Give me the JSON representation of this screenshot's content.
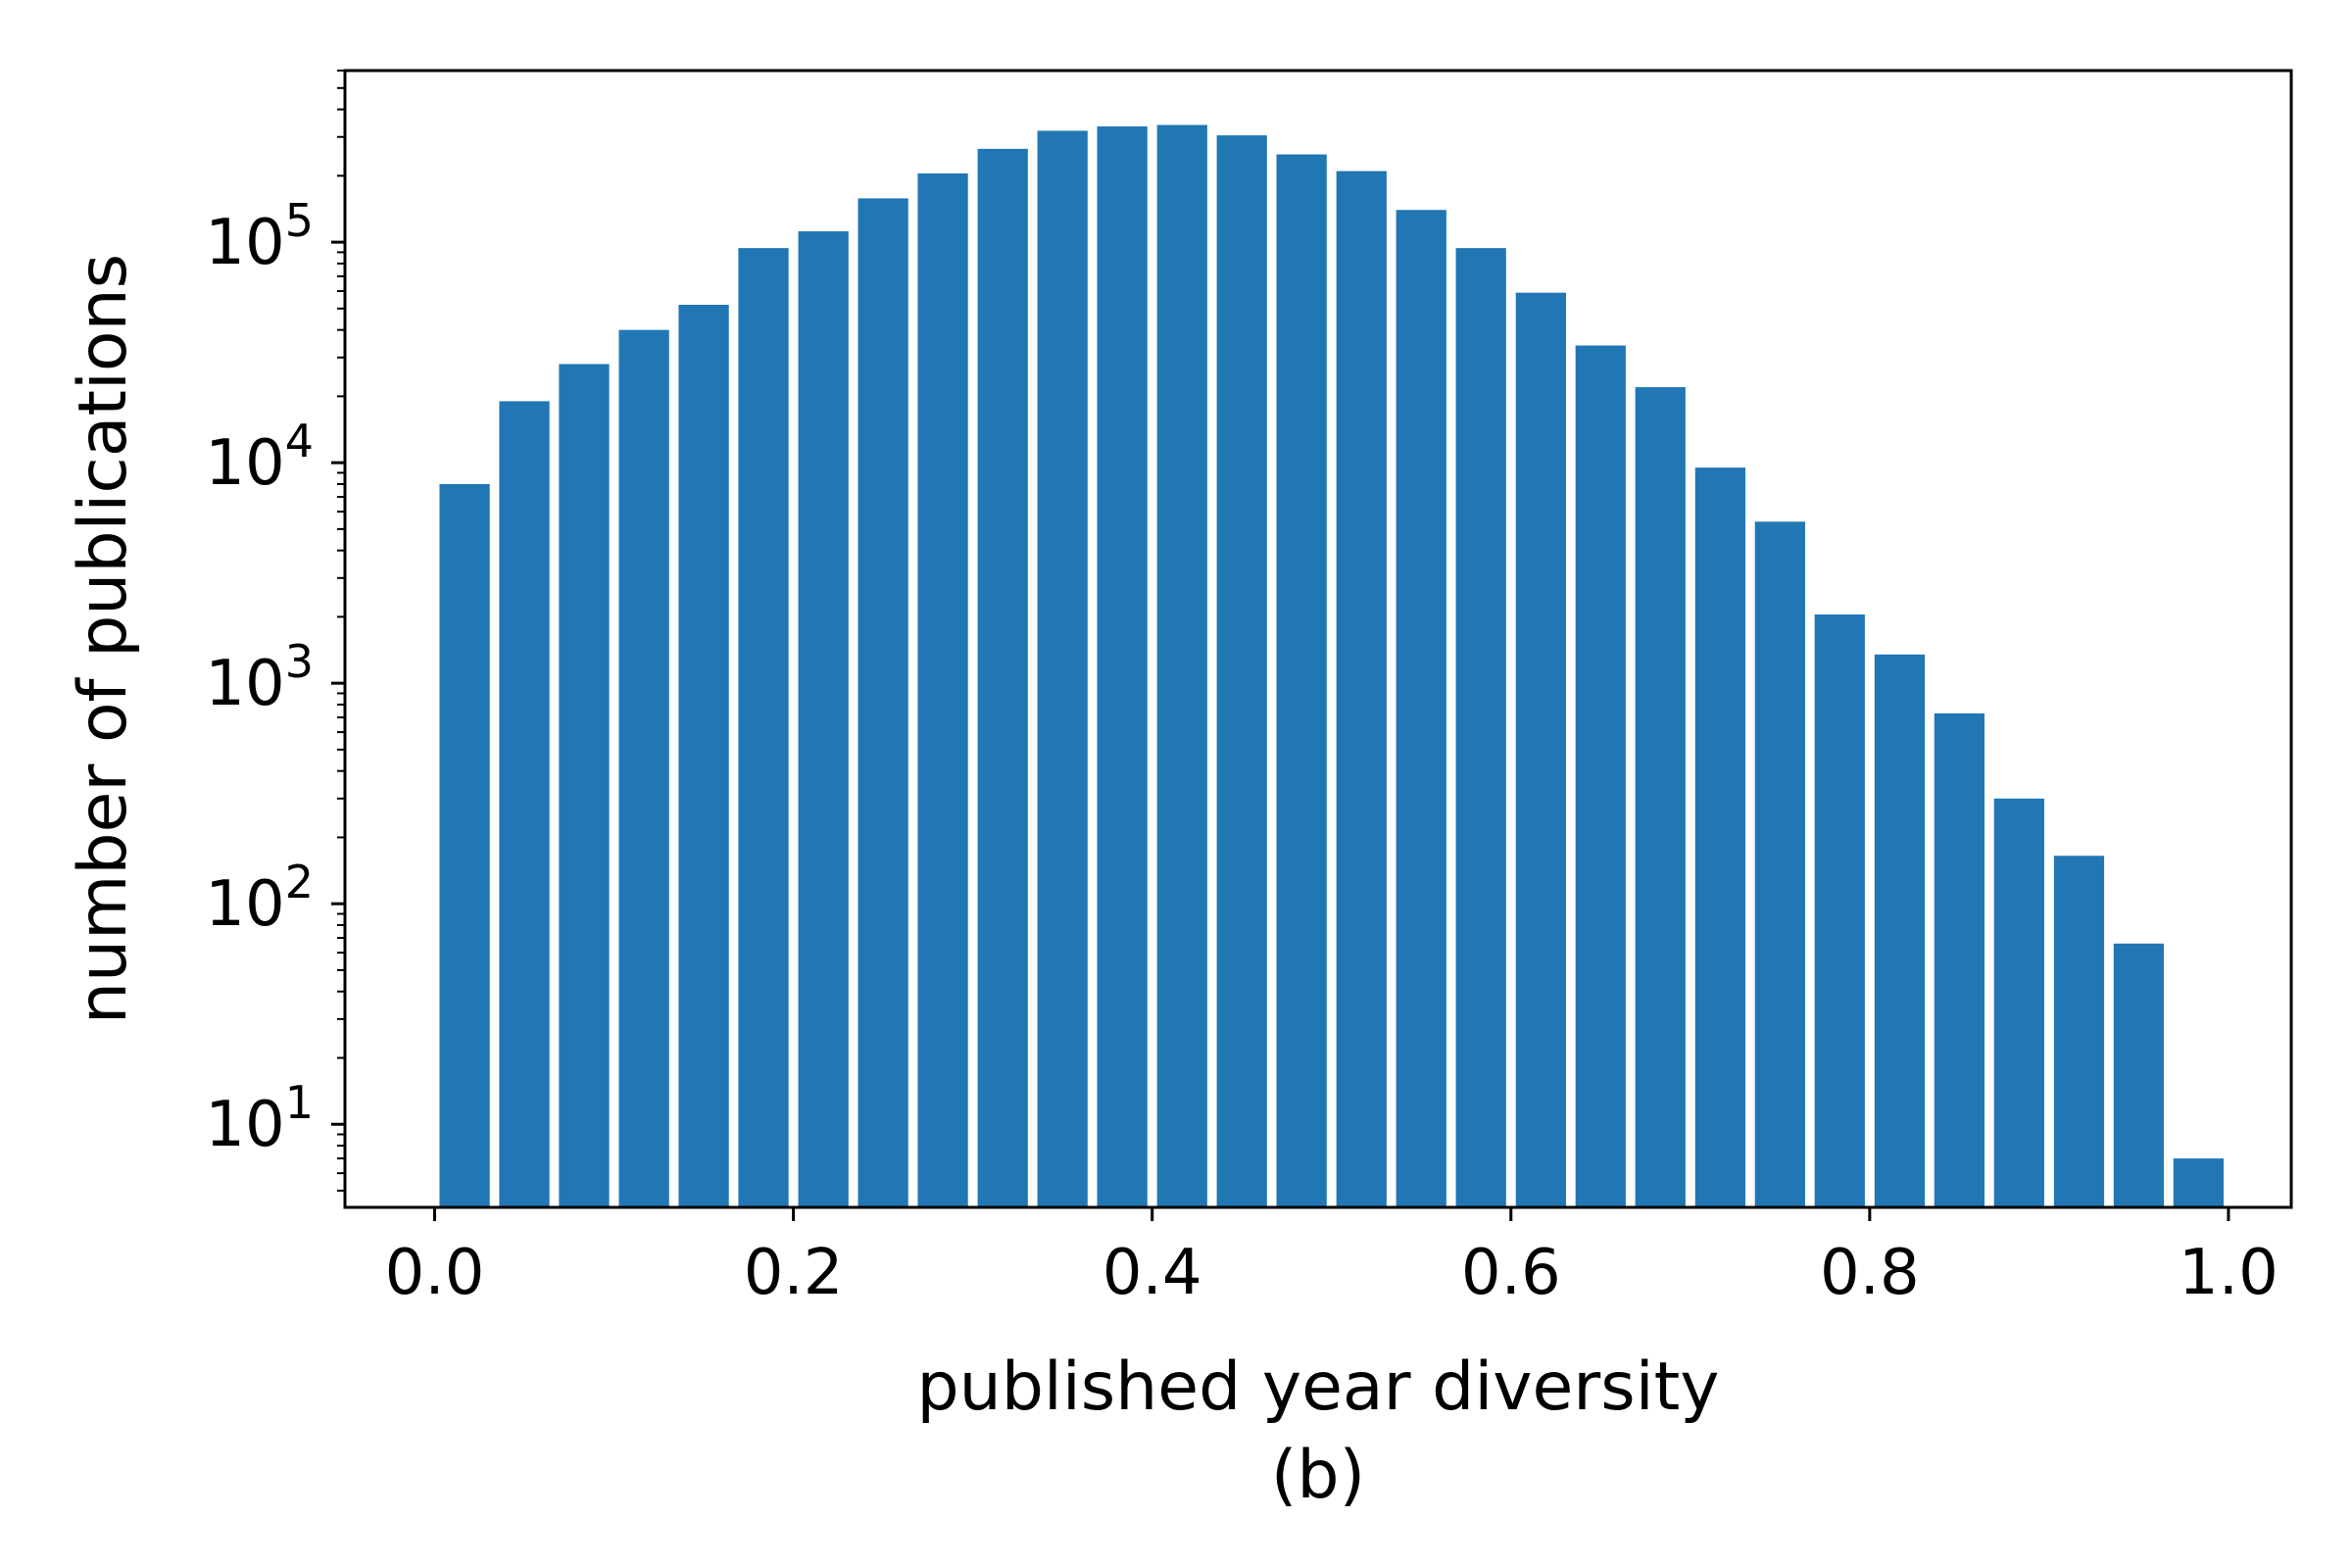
{
  "chart_data": {
    "type": "bar",
    "xlabel": "published year diversity",
    "ylabel": "number of publications",
    "caption": "(b)",
    "yscale": "log",
    "xlim": [
      -0.05,
      1.035
    ],
    "ylim": [
      4.2,
      600000
    ],
    "grid": false,
    "bar_width": 0.028,
    "color": "#2077b4",
    "x": [
      0.0167,
      0.05,
      0.0833,
      0.1167,
      0.15,
      0.1833,
      0.2167,
      0.25,
      0.2833,
      0.3167,
      0.35,
      0.3833,
      0.4167,
      0.45,
      0.4833,
      0.5167,
      0.55,
      0.5833,
      0.6167,
      0.65,
      0.6833,
      0.7167,
      0.75,
      0.7833,
      0.8167,
      0.85,
      0.8833,
      0.9167,
      0.95,
      0.9833
    ],
    "values": [
      8000,
      19000,
      28000,
      40000,
      52000,
      94000,
      112000,
      158000,
      205000,
      265000,
      320000,
      335000,
      340000,
      305000,
      250000,
      210000,
      140000,
      94000,
      59000,
      34000,
      22000,
      9500,
      5400,
      2050,
      1350,
      730,
      300,
      165,
      66,
      7
    ],
    "x_ticks": [
      0.0,
      0.2,
      0.4,
      0.6,
      0.8,
      1.0
    ],
    "x_tick_labels": [
      "0.0",
      "0.2",
      "0.4",
      "0.6",
      "0.8",
      "1.0"
    ],
    "y_ticks": [
      10,
      100,
      1000,
      10000,
      100000
    ],
    "y_tick_labels": [
      {
        "base": "10",
        "exp": "1"
      },
      {
        "base": "10",
        "exp": "2"
      },
      {
        "base": "10",
        "exp": "3"
      },
      {
        "base": "10",
        "exp": "4"
      },
      {
        "base": "10",
        "exp": "5"
      }
    ]
  }
}
